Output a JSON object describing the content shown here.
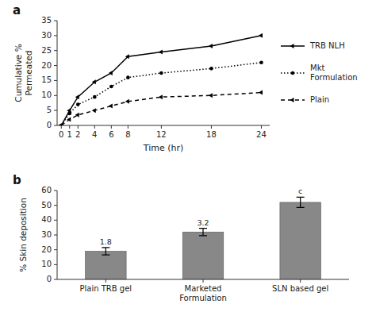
{
  "chart_data": [
    {
      "type": "line",
      "title": "a",
      "x": [
        0,
        1,
        2,
        4,
        6,
        8,
        12,
        18,
        24
      ],
      "xlabel": "Time (hr)",
      "ylabel": "Cumulative %\nPermeated",
      "xlim": [
        -0.5,
        25
      ],
      "xticks": [
        0,
        1,
        2,
        4,
        6,
        8,
        12,
        18,
        24
      ],
      "ylim": [
        0,
        35
      ],
      "yticks": [
        0,
        5,
        10,
        15,
        20,
        25,
        30,
        35
      ],
      "legend": "right",
      "series": [
        {
          "name": "TRB NLH",
          "color": "black",
          "line_style": "solid",
          "marker": "caret",
          "values": [
            0,
            5.0,
            9.5,
            14.5,
            17.5,
            23.0,
            24.5,
            26.5,
            30.0
          ]
        },
        {
          "name": "Mkt\nFormulation",
          "color": "black",
          "line_style": "dotted",
          "marker": "point",
          "values": [
            0,
            4.0,
            7.0,
            9.5,
            13.0,
            16.0,
            17.5,
            19.0,
            21.0
          ]
        },
        {
          "name": "Plain",
          "color": "black",
          "line_style": "dashed",
          "marker": "caret",
          "values": [
            0,
            2.0,
            3.5,
            5.0,
            6.5,
            8.0,
            9.5,
            10.0,
            11.0
          ]
        }
      ]
    },
    {
      "type": "bar",
      "title": "b",
      "categories": [
        "Plain TRB gel",
        "Marketed\nFormulation",
        "SLN based gel"
      ],
      "values": [
        19.0,
        32.0,
        52.0
      ],
      "errors": [
        2.5,
        2.5,
        3.5
      ],
      "annotations": [
        "1.8",
        "3.2",
        "c"
      ],
      "color": "#888888",
      "ylabel": "% Skin deposition",
      "ylim": [
        0,
        60
      ],
      "yticks": [
        0,
        10,
        20,
        30,
        40,
        50,
        60
      ]
    }
  ]
}
